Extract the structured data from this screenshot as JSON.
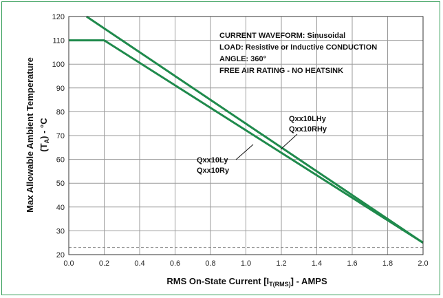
{
  "chart_data": {
    "type": "line",
    "xlabel": {
      "prefix": "RMS On-State Current [I",
      "subscript": "T(RMS)",
      "suffix": "] - AMPS"
    },
    "ylabel": {
      "line1": "Max Allowable Ambient Temperature",
      "line2_open": "(T",
      "line2_sub": "A",
      "line2_close": ") - °C"
    },
    "xlim": [
      0.0,
      2.0
    ],
    "ylim": [
      20,
      120
    ],
    "xticks": [
      "0.0",
      "0.2",
      "0.4",
      "0.6",
      "0.8",
      "1.0",
      "1.2",
      "1.4",
      "1.6",
      "1.8",
      "2.0"
    ],
    "yticks": [
      "20",
      "30",
      "40",
      "50",
      "60",
      "70",
      "80",
      "90",
      "100",
      "110",
      "120"
    ],
    "grid": true,
    "annotations": [
      "CURRENT WAVEFORM: Sinusoidal",
      "LOAD: Resistive or Inductive CONDUCTION",
      "ANGLE: 360°",
      "FREE AIR RATING  - NO HEATSINK"
    ],
    "reference_line": {
      "y": 23,
      "style": "dashed"
    },
    "series": [
      {
        "labels": [
          "Qxx10LHy",
          "Qxx10RHy"
        ],
        "x": [
          0.1,
          2.0
        ],
        "y": [
          120,
          25
        ]
      },
      {
        "labels": [
          "Qxx10Ly",
          "Qxx10Ry"
        ],
        "x": [
          0.0,
          0.2,
          2.0
        ],
        "y": [
          110,
          110,
          25
        ]
      }
    ],
    "colors": {
      "line": "#1f8a4c",
      "frame": "#2e9a52",
      "grid": "#9a9a9a",
      "reference": "#888888"
    }
  }
}
